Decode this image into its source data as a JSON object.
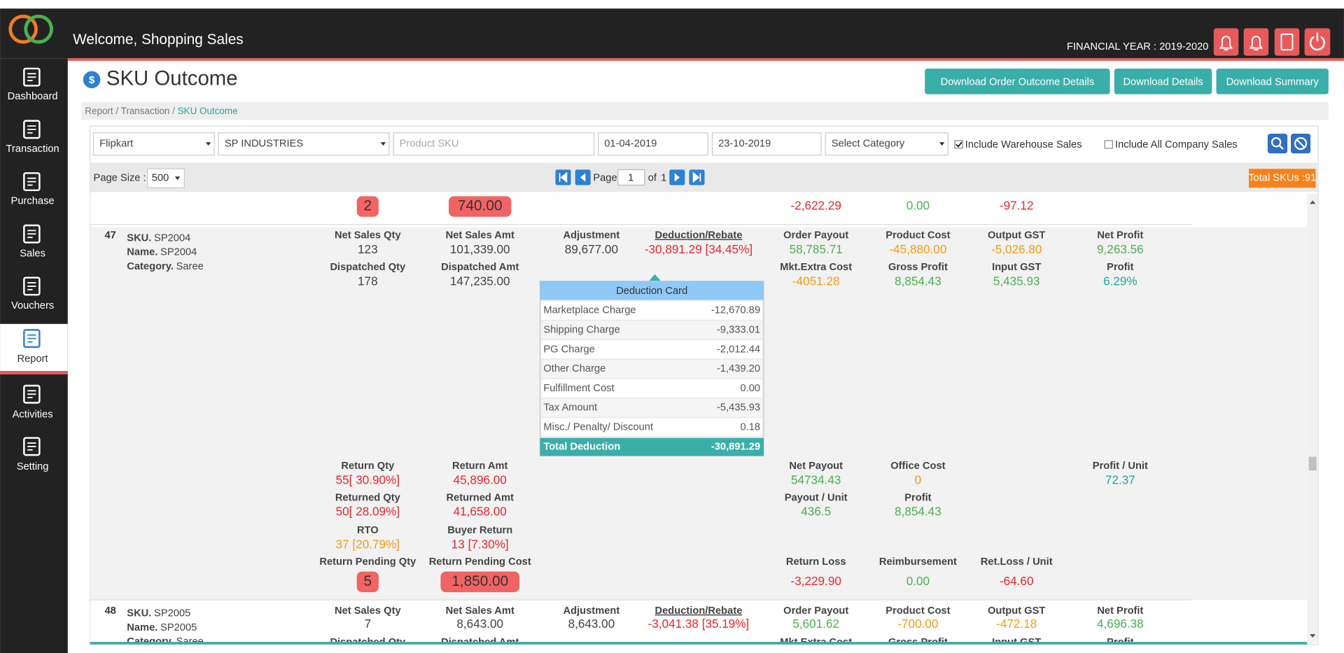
{
  "sidebar": {
    "items": [
      "Dashboard",
      "Transaction",
      "Purchase",
      "Sales",
      "Vouchers",
      "Report",
      "Activities",
      "Setting"
    ]
  },
  "header": {
    "welcome": "Welcome, Shopping Sales",
    "financial_year": "FINANCIAL YEAR : 2019-2020"
  },
  "page": {
    "title": "SKU Outcome",
    "buttons": [
      "Download Order Outcome Details",
      "Download Details",
      "Download Summary"
    ],
    "breadcrumb": {
      "path": "Report / Transaction / ",
      "current": "SKU Outcome"
    }
  },
  "filters": {
    "marketplace": "Flipkart",
    "company": "SP INDUSTRIES",
    "product_sku_placeholder": "Product SKU",
    "from_date": "01-04-2019",
    "to_date": "23-10-2019",
    "category": "Select Category",
    "checkboxes": [
      {
        "label": "Include Warehouse Sales",
        "checked": true
      },
      {
        "label": "Include All Company Sales",
        "checked": false
      }
    ]
  },
  "pager": {
    "page_size_label": "Page Size :",
    "page_size": "500",
    "page_label": "Page",
    "page": "1",
    "of_label": "of",
    "total_pages": "1",
    "total_skus": "Total SKUs :91"
  },
  "partial_row": {
    "cells": [
      {
        "value": "2",
        "color": "#333333",
        "highlight": true
      },
      {
        "value": "740.00",
        "color": "#333333",
        "highlight": true
      },
      null,
      null,
      {
        "value": "-2,622.29",
        "color": "#e8272a"
      },
      {
        "value": "0.00",
        "color": "#4caf50"
      },
      {
        "value": "-97.12",
        "color": "#e8272a"
      },
      null
    ]
  },
  "items": [
    {
      "number": "47",
      "info": [
        {
          "label": "SKU.",
          "value": "SP2004"
        },
        {
          "label": "Name.",
          "value": "SP2004"
        },
        {
          "label": "Category.",
          "value": "Saree"
        }
      ],
      "grid": [
        [
          {
            "label": "Net Sales Qty",
            "value": "123",
            "color": "#444444"
          },
          {
            "label": "Net Sales Amt",
            "value": "101,339.00",
            "color": "#444444"
          },
          {
            "label": "Adjustment",
            "value": "89,677.00",
            "color": "#444444"
          },
          {
            "label": "Deduction/Rebate",
            "value": "-30,891.29 [34.45%]",
            "color": "#e8272a",
            "underline": true
          },
          {
            "label": "Order Payout",
            "value": "58,785.71",
            "color": "#4caf50"
          },
          {
            "label": "Product Cost",
            "value": "-45,880.00",
            "color": "#f39c12"
          },
          {
            "label": "Output GST",
            "value": "-5,026.80",
            "color": "#f39c12"
          },
          {
            "label": "Net Profit",
            "value": "9,263.56",
            "color": "#4caf50"
          }
        ],
        [
          {
            "label": "Dispatched Qty",
            "value": "178",
            "color": "#444444"
          },
          {
            "label": "Dispatched Amt",
            "value": "147,235.00",
            "color": "#444444"
          },
          null,
          null,
          {
            "label": "Mkt.Extra Cost",
            "value": "-4051.28",
            "color": "#f39c12"
          },
          {
            "label": "Gross Profit",
            "value": "8,854.43",
            "color": "#4caf50"
          },
          {
            "label": "Input GST",
            "value": "5,435.93",
            "color": "#4caf50"
          },
          {
            "label": "Profit",
            "value": "6.29%",
            "color": "#26a69a"
          }
        ],
        [
          {
            "label": "Return Qty",
            "value": "55[ 30.90%]",
            "color": "#e8272a"
          },
          {
            "label": "Return Amt",
            "value": "45,896.00",
            "color": "#e8272a"
          },
          null,
          null,
          {
            "label": "Net Payout",
            "value": "54734.43",
            "color": "#4caf50"
          },
          {
            "label": "Office Cost",
            "value": "0",
            "color": "#f39c12"
          },
          null,
          {
            "label": "Profit / Unit",
            "value": "72.37",
            "color": "#26a69a"
          }
        ],
        [
          {
            "label": "Returned Qty",
            "value": "50[ 28.09%]",
            "color": "#e8272a"
          },
          {
            "label": "Returned Amt",
            "value": "41,658.00",
            "color": "#e8272a"
          },
          null,
          null,
          {
            "label": "Payout / Unit",
            "value": "436.5",
            "color": "#4caf50"
          },
          {
            "label": "Profit",
            "value": "8,854.43",
            "color": "#4caf50"
          },
          null,
          null
        ],
        [
          {
            "label": "RTO",
            "value": "37 [20.79%]",
            "color": "#f39c12"
          },
          {
            "label": "Buyer Return",
            "value": "13 [7.30%]",
            "color": "#e8272a"
          },
          null,
          null,
          null,
          null,
          null,
          null
        ],
        [
          {
            "label": "Return Pending Qty",
            "value": "5",
            "color": "#333333",
            "highlight": true
          },
          {
            "label": "Return Pending Cost",
            "value": "1,850.00",
            "color": "#333333",
            "highlight": true
          },
          null,
          null,
          {
            "label": "Return Loss",
            "value": "-3,229.90",
            "color": "#e8272a"
          },
          {
            "label": "Reimbursement",
            "value": "0.00",
            "color": "#4caf50"
          },
          {
            "label": "Ret.Loss / Unit",
            "value": "-64.60",
            "color": "#e8272a"
          },
          null
        ]
      ]
    },
    {
      "number": "48",
      "info": [
        {
          "label": "SKU.",
          "value": "SP2005"
        },
        {
          "label": "Name.",
          "value": "SP2005"
        },
        {
          "label": "Category.",
          "value": "Saree"
        }
      ],
      "grid": [
        [
          {
            "label": "Net Sales Qty",
            "value": "7",
            "color": "#444444"
          },
          {
            "label": "Net Sales Amt",
            "value": "8,643.00",
            "color": "#444444"
          },
          {
            "label": "Adjustment",
            "value": "8,643.00",
            "color": "#444444"
          },
          {
            "label": "Deduction/Rebate",
            "value": "-3,041.38 [35.19%]",
            "color": "#e8272a",
            "underline": true
          },
          {
            "label": "Order Payout",
            "value": "5,601.62",
            "color": "#4caf50"
          },
          {
            "label": "Product Cost",
            "value": "-700.00",
            "color": "#f39c12"
          },
          {
            "label": "Output GST",
            "value": "-472.18",
            "color": "#f39c12"
          },
          {
            "label": "Net Profit",
            "value": "4,696.38",
            "color": "#4caf50"
          }
        ],
        [
          {
            "label": "Dispatched Qty"
          },
          {
            "label": "Dispatched Amt"
          },
          null,
          null,
          {
            "label": "Mkt.Extra Cost"
          },
          {
            "label": "Gross Profit"
          },
          {
            "label": "Input GST"
          },
          {
            "label": "Profit"
          }
        ]
      ]
    }
  ],
  "deduction_card": {
    "title": "Deduction Card",
    "rows": [
      {
        "label": "Marketplace Charge",
        "value": "-12,670.89"
      },
      {
        "label": "Shipping Charge",
        "value": "-9,333.01"
      },
      {
        "label": "PG Charge",
        "value": "-2,012.44"
      },
      {
        "label": "Other Charge",
        "value": "-1,439.20"
      },
      {
        "label": "Fulfillment Cost",
        "value": "0.00"
      },
      {
        "label": "Tax Amount",
        "value": "-5,435.93"
      },
      {
        "label": "Misc./ Penalty/ Discount",
        "value": "0.18"
      }
    ],
    "total": {
      "label": "Total Deduction",
      "value": "-30,891.29"
    }
  }
}
